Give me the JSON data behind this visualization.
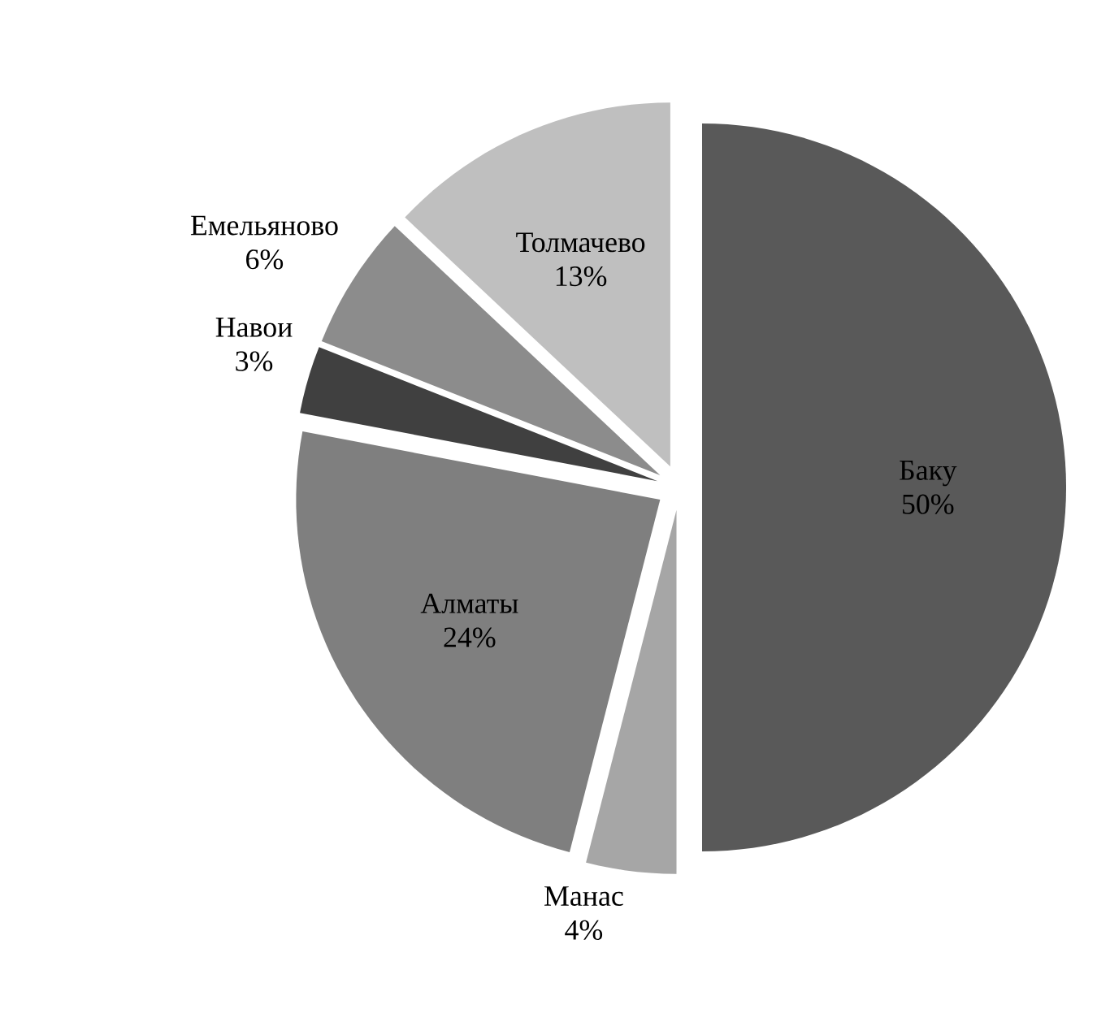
{
  "chart_data": {
    "type": "pie",
    "categories": [
      "Баку",
      "Манас",
      "Алматы",
      "Навои",
      "Емельяново",
      "Толмачево"
    ],
    "values": [
      50,
      4,
      24,
      3,
      6,
      13
    ],
    "value_labels": [
      "50%",
      "4%",
      "24%",
      "3%",
      "6%",
      "13%"
    ],
    "colors": [
      "#595959",
      "#a6a6a6",
      "#7f7f7f",
      "#404040",
      "#8c8c8c",
      "#bfbfbf"
    ]
  }
}
